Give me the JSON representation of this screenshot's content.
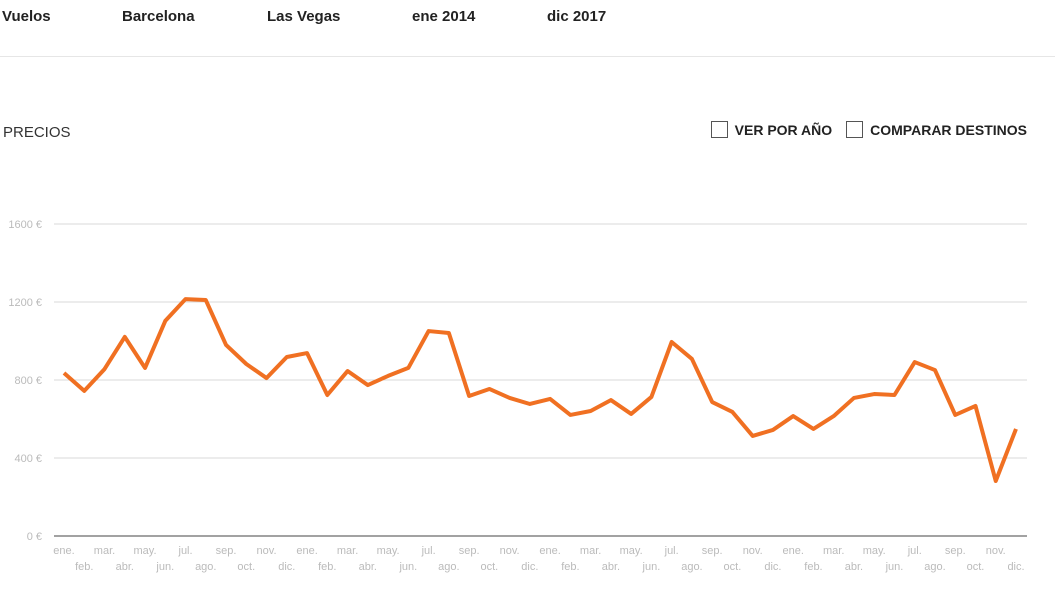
{
  "header": {
    "fields": [
      "Vuelos",
      "Barcelona",
      "Las Vegas",
      "ene 2014",
      "dic 2017"
    ]
  },
  "controls": [
    "VER POR AÑO",
    "COMPARAR DESTINOS"
  ],
  "chart_data": {
    "type": "line",
    "title": "PRECIOS",
    "categories": [
      "ene.",
      "feb.",
      "mar.",
      "abr.",
      "may.",
      "jun.",
      "jul.",
      "ago.",
      "sep.",
      "oct.",
      "nov.",
      "dic.",
      "ene.",
      "feb.",
      "mar.",
      "abr.",
      "may.",
      "jun.",
      "jul.",
      "ago.",
      "sep.",
      "oct.",
      "nov.",
      "dic.",
      "ene.",
      "feb.",
      "mar.",
      "abr.",
      "may.",
      "jun.",
      "jul.",
      "ago.",
      "sep.",
      "oct.",
      "nov.",
      "dic.",
      "ene.",
      "feb.",
      "mar.",
      "abr.",
      "may.",
      "jun.",
      "jul.",
      "ago.",
      "sep.",
      "oct.",
      "nov.",
      "dic."
    ],
    "values": [
      836,
      744,
      856,
      1021,
      862,
      1103,
      1215,
      1210,
      980,
      882,
      810,
      918,
      938,
      723,
      846,
      774,
      821,
      862,
      1051,
      1041,
      718,
      754,
      708,
      677,
      703,
      621,
      641,
      697,
      626,
      713,
      995,
      908,
      687,
      636,
      513,
      544,
      615,
      549,
      615,
      708,
      728,
      723,
      892,
      851,
      621,
      667,
      282,
      549
    ],
    "color": "#f07022",
    "ylim": [
      0,
      1600
    ],
    "yticks": [
      {
        "value": 0,
        "label": "0 €"
      },
      {
        "value": 400,
        "label": "400 €"
      },
      {
        "value": 800,
        "label": "800 €"
      },
      {
        "value": 1200,
        "label": "1200 €"
      },
      {
        "value": 1600,
        "label": "1600 €"
      }
    ],
    "grid": true
  }
}
